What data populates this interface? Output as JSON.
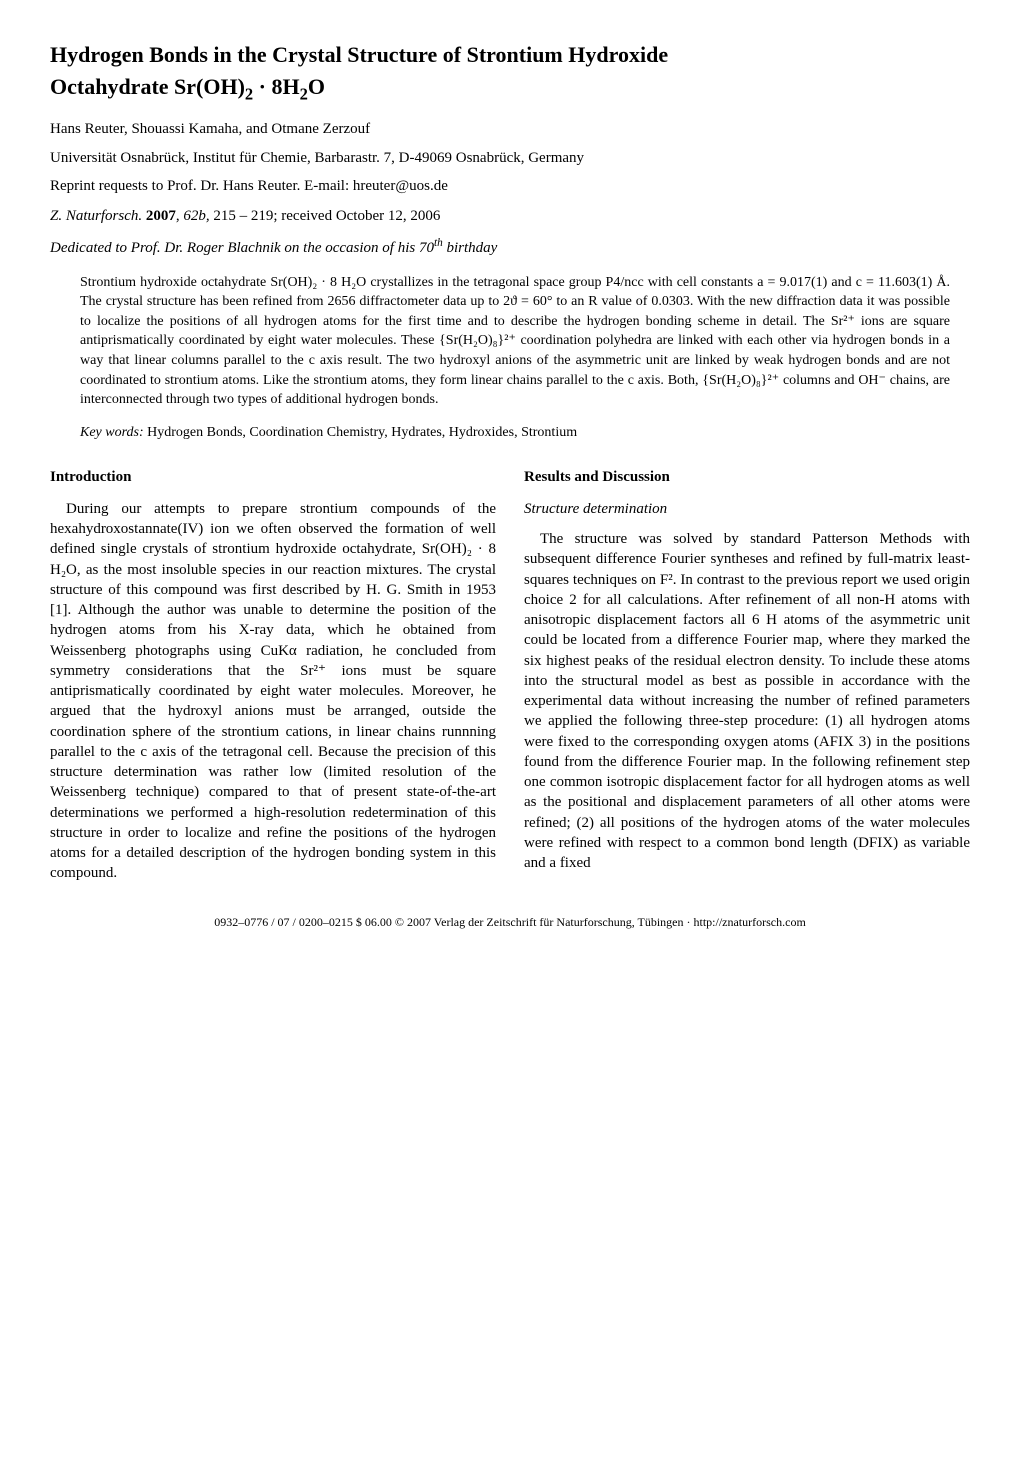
{
  "title_line1": "Hydrogen Bonds in the Crystal Structure of Strontium Hydroxide",
  "title_line2_prefix": "Octahydrate Sr(OH)",
  "title_line2_sub1": "2",
  "title_line2_mid": " · 8H",
  "title_line2_sub2": "2",
  "title_line2_suffix": "O",
  "authors": "Hans Reuter, Shouassi Kamaha, and Otmane Zerzouf",
  "affiliation": "Universität Osnabrück, Institut für Chemie, Barbarastr. 7, D-49069 Osnabrück, Germany",
  "reprint": "Reprint requests to  Prof. Dr. Hans Reuter. E-mail: hreuter@uos.de",
  "citation_journal": "Z. Naturforsch.",
  "citation_rest": " 2007, 62b, 215 – 219; received October 12, 2006",
  "citation_year": "2007",
  "citation_vol": "62b,",
  "citation_pages": "215 – 219; received October 12, 2006",
  "dedication_prefix": "Dedicated to Prof. Dr. Roger Blachnik on the occasion of his 70",
  "dedication_sup": "th",
  "dedication_suffix": " birthday",
  "abstract": "Strontium hydroxide octahydrate Sr(OH)₂ · 8 H₂O crystallizes in the tetragonal space group P4/ncc with cell constants a = 9.017(1) and c = 11.603(1) Å. The crystal structure has been refined from 2656 diffractometer data up to 2ϑ = 60° to an R value of 0.0303. With the new diffraction data it was possible to localize the positions of all hydrogen atoms for the first time and to describe the hydrogen bonding scheme in detail. The Sr²⁺ ions are square antiprismatically coordinated by eight water molecules. These {Sr(H₂O)₈}²⁺ coordination polyhedra are linked with each other via hydrogen bonds in a way that linear columns parallel to the c axis result. The two hydroxyl anions of the asymmetric unit are linked by weak hydrogen bonds and are not coordinated to strontium atoms. Like the strontium atoms, they form linear chains parallel to the c axis. Both, {Sr(H₂O)₈}²⁺ columns and OH⁻ chains, are interconnected through two types of additional hydrogen bonds.",
  "keywords_label": "Key words:",
  "keywords_text": " Hydrogen Bonds, Coordination Chemistry, Hydrates, Hydroxides, Strontium",
  "left": {
    "heading": "Introduction",
    "body": "During our attempts to prepare strontium compounds of the hexahydroxostannate(IV) ion we often observed the formation of well defined single crystals of strontium hydroxide octahydrate, Sr(OH)₂ · 8 H₂O, as the most insoluble species in our reaction mixtures. The crystal structure of this compound was first described by H. G. Smith in 1953 [1]. Although the author was unable to determine the position of the hydrogen atoms from his X-ray data, which he obtained from Weissenberg photographs using CuKα radiation, he concluded from symmetry considerations that the Sr²⁺ ions must be square antiprismatically coordinated by eight water molecules. Moreover, he argued that the hydroxyl anions must be arranged, outside the coordination sphere of the strontium cations, in linear chains runnning parallel to the c axis of the tetragonal cell. Because the precision of this structure determination was rather low (limited resolution of the Weissenberg technique) compared to that of present state-of-the-art determinations we performed a high-resolution redetermination of this structure in order to localize and refine the positions of the hydrogen atoms for a detailed description of the hydrogen bonding system in this compound."
  },
  "right": {
    "heading": "Results and Discussion",
    "subheading": "Structure determination",
    "body": "The structure was solved by standard Patterson Methods with subsequent difference Fourier syntheses and refined by full-matrix least-squares techniques on F². In contrast to the previous report we used origin choice 2 for all calculations. After refinement of all non-H atoms with anisotropic displacement factors all 6 H atoms of the asymmetric unit could be located from a difference Fourier map, where they marked the six highest peaks of the residual electron density. To include these atoms into the structural model as best as possible in accordance with the experimental data without increasing the number of refined parameters we applied the following three-step procedure: (1) all hydrogen atoms were fixed to the corresponding oxygen atoms (AFIX 3) in the positions found from the difference Fourier map. In the following refinement step one common isotropic displacement factor for all hydrogen atoms as well as the positional and displacement parameters of all other atoms were refined; (2) all positions of the hydrogen atoms of the water molecules were refined with respect to a common bond length (DFIX) as variable and a fixed"
  },
  "footer": "0932–0776 / 07 / 0200–0215 $ 06.00 © 2007 Verlag der Zeitschrift für Naturforschung, Tübingen · http://znaturforsch.com"
}
